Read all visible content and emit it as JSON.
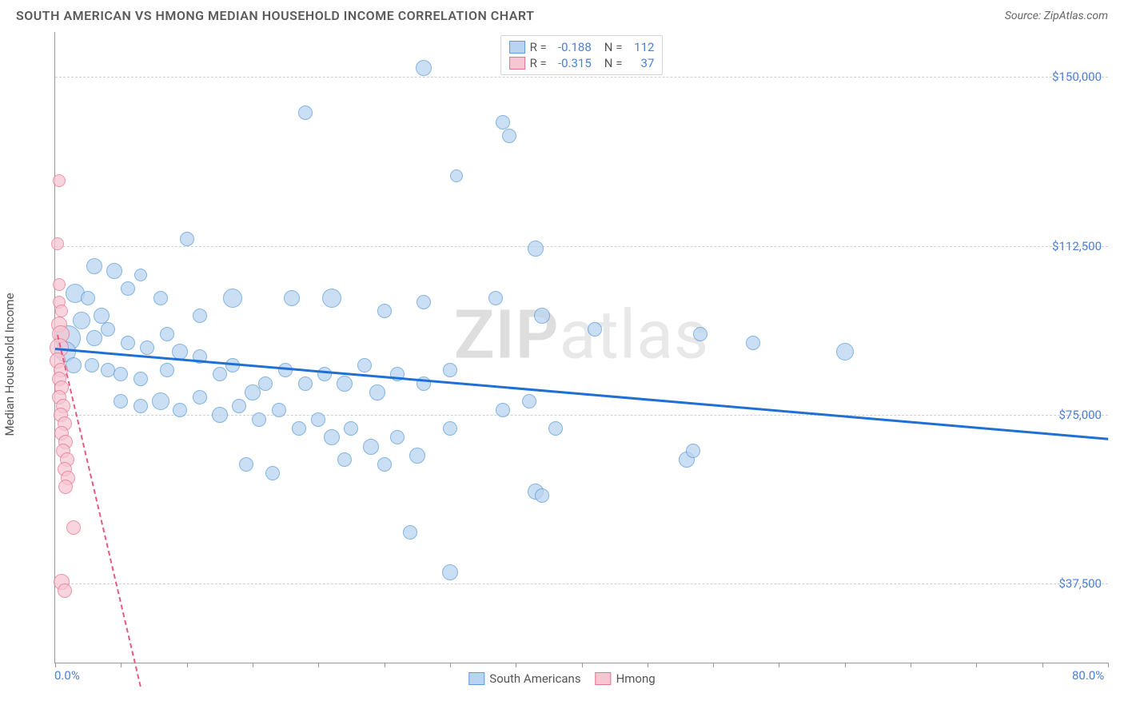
{
  "title": "SOUTH AMERICAN VS HMONG MEDIAN HOUSEHOLD INCOME CORRELATION CHART",
  "source": "Source: ZipAtlas.com",
  "ylabel": "Median Household Income",
  "watermark_a": "ZIP",
  "watermark_b": "atlas",
  "chart": {
    "type": "scatter",
    "xlim": [
      0,
      80
    ],
    "ylim": [
      20000,
      160000
    ],
    "yticks": [
      {
        "v": 37500,
        "label": "$37,500"
      },
      {
        "v": 75000,
        "label": "$75,000"
      },
      {
        "v": 112500,
        "label": "$112,500"
      },
      {
        "v": 150000,
        "label": "$150,000"
      }
    ],
    "xticks_minor": [
      0,
      5,
      10,
      15,
      20,
      25,
      30,
      35,
      40,
      45,
      50,
      55,
      60,
      65,
      70,
      75,
      80
    ],
    "xaxis_labels": [
      {
        "v": 0,
        "label": "0.0%"
      },
      {
        "v": 80,
        "label": "80.0%"
      }
    ],
    "background_color": "#ffffff",
    "grid_color": "#d0d0d0",
    "axis_color": "#999999"
  },
  "series": [
    {
      "name": "South Americans",
      "fill": "#b9d4f1",
      "stroke": "#5c9bd8",
      "trend_color": "#1f6fd4",
      "trend_style": "solid",
      "R": "-0.188",
      "N": "112",
      "trend": {
        "x1": 0,
        "y1": 90000,
        "x2": 80,
        "y2": 70000
      },
      "points": [
        {
          "x": 28.0,
          "y": 152000,
          "r": 10
        },
        {
          "x": 19.0,
          "y": 142000,
          "r": 9
        },
        {
          "x": 34.0,
          "y": 140000,
          "r": 9
        },
        {
          "x": 34.5,
          "y": 137000,
          "r": 9
        },
        {
          "x": 30.5,
          "y": 128000,
          "r": 8
        },
        {
          "x": 10.0,
          "y": 114000,
          "r": 9
        },
        {
          "x": 36.5,
          "y": 112000,
          "r": 10
        },
        {
          "x": 3.0,
          "y": 108000,
          "r": 10
        },
        {
          "x": 4.5,
          "y": 107000,
          "r": 10
        },
        {
          "x": 1.5,
          "y": 102000,
          "r": 12
        },
        {
          "x": 2.5,
          "y": 101000,
          "r": 9
        },
        {
          "x": 5.5,
          "y": 103000,
          "r": 9
        },
        {
          "x": 6.5,
          "y": 106000,
          "r": 8
        },
        {
          "x": 8.0,
          "y": 101000,
          "r": 9
        },
        {
          "x": 13.5,
          "y": 101000,
          "r": 12
        },
        {
          "x": 11.0,
          "y": 97000,
          "r": 9
        },
        {
          "x": 18.0,
          "y": 101000,
          "r": 10
        },
        {
          "x": 21.0,
          "y": 101000,
          "r": 12
        },
        {
          "x": 28.0,
          "y": 100000,
          "r": 9
        },
        {
          "x": 33.5,
          "y": 101000,
          "r": 9
        },
        {
          "x": 25.0,
          "y": 98000,
          "r": 9
        },
        {
          "x": 2.0,
          "y": 96000,
          "r": 11
        },
        {
          "x": 3.5,
          "y": 97000,
          "r": 10
        },
        {
          "x": 1.0,
          "y": 92000,
          "r": 16
        },
        {
          "x": 0.8,
          "y": 89000,
          "r": 13
        },
        {
          "x": 3.0,
          "y": 92000,
          "r": 10
        },
        {
          "x": 4.0,
          "y": 94000,
          "r": 9
        },
        {
          "x": 5.5,
          "y": 91000,
          "r": 9
        },
        {
          "x": 7.0,
          "y": 90000,
          "r": 9
        },
        {
          "x": 8.5,
          "y": 93000,
          "r": 9
        },
        {
          "x": 9.5,
          "y": 89000,
          "r": 10
        },
        {
          "x": 37.0,
          "y": 97000,
          "r": 10
        },
        {
          "x": 41.0,
          "y": 94000,
          "r": 9
        },
        {
          "x": 49.0,
          "y": 93000,
          "r": 9
        },
        {
          "x": 53.0,
          "y": 91000,
          "r": 9
        },
        {
          "x": 60.0,
          "y": 89000,
          "r": 11
        },
        {
          "x": 1.4,
          "y": 86000,
          "r": 10
        },
        {
          "x": 2.8,
          "y": 86000,
          "r": 9
        },
        {
          "x": 4.0,
          "y": 85000,
          "r": 9
        },
        {
          "x": 5.0,
          "y": 84000,
          "r": 9
        },
        {
          "x": 6.5,
          "y": 83000,
          "r": 9
        },
        {
          "x": 8.5,
          "y": 85000,
          "r": 9
        },
        {
          "x": 11.0,
          "y": 88000,
          "r": 9
        },
        {
          "x": 12.5,
          "y": 84000,
          "r": 9
        },
        {
          "x": 13.5,
          "y": 86000,
          "r": 9
        },
        {
          "x": 15.0,
          "y": 80000,
          "r": 10
        },
        {
          "x": 16.0,
          "y": 82000,
          "r": 9
        },
        {
          "x": 17.5,
          "y": 85000,
          "r": 9
        },
        {
          "x": 19.0,
          "y": 82000,
          "r": 9
        },
        {
          "x": 20.5,
          "y": 84000,
          "r": 9
        },
        {
          "x": 22.0,
          "y": 82000,
          "r": 10
        },
        {
          "x": 23.5,
          "y": 86000,
          "r": 9
        },
        {
          "x": 24.5,
          "y": 80000,
          "r": 10
        },
        {
          "x": 26.0,
          "y": 84000,
          "r": 9
        },
        {
          "x": 28.0,
          "y": 82000,
          "r": 9
        },
        {
          "x": 30.0,
          "y": 85000,
          "r": 9
        },
        {
          "x": 5.0,
          "y": 78000,
          "r": 9
        },
        {
          "x": 6.5,
          "y": 77000,
          "r": 9
        },
        {
          "x": 8.0,
          "y": 78000,
          "r": 11
        },
        {
          "x": 9.5,
          "y": 76000,
          "r": 9
        },
        {
          "x": 11.0,
          "y": 79000,
          "r": 9
        },
        {
          "x": 12.5,
          "y": 75000,
          "r": 10
        },
        {
          "x": 14.0,
          "y": 77000,
          "r": 9
        },
        {
          "x": 15.5,
          "y": 74000,
          "r": 9
        },
        {
          "x": 17.0,
          "y": 76000,
          "r": 9
        },
        {
          "x": 18.5,
          "y": 72000,
          "r": 9
        },
        {
          "x": 20.0,
          "y": 74000,
          "r": 9
        },
        {
          "x": 21.0,
          "y": 70000,
          "r": 10
        },
        {
          "x": 22.5,
          "y": 72000,
          "r": 9
        },
        {
          "x": 24.0,
          "y": 68000,
          "r": 10
        },
        {
          "x": 26.0,
          "y": 70000,
          "r": 9
        },
        {
          "x": 27.5,
          "y": 66000,
          "r": 10
        },
        {
          "x": 30.0,
          "y": 72000,
          "r": 9
        },
        {
          "x": 34.0,
          "y": 76000,
          "r": 9
        },
        {
          "x": 36.0,
          "y": 78000,
          "r": 9
        },
        {
          "x": 38.0,
          "y": 72000,
          "r": 9
        },
        {
          "x": 36.5,
          "y": 58000,
          "r": 10
        },
        {
          "x": 37.0,
          "y": 57000,
          "r": 9
        },
        {
          "x": 14.5,
          "y": 64000,
          "r": 9
        },
        {
          "x": 16.5,
          "y": 62000,
          "r": 9
        },
        {
          "x": 22.0,
          "y": 65000,
          "r": 9
        },
        {
          "x": 25.0,
          "y": 64000,
          "r": 9
        },
        {
          "x": 27.0,
          "y": 49000,
          "r": 9
        },
        {
          "x": 30.0,
          "y": 40000,
          "r": 10
        },
        {
          "x": 48.0,
          "y": 65000,
          "r": 10
        },
        {
          "x": 48.5,
          "y": 67000,
          "r": 9
        }
      ]
    },
    {
      "name": "Hmong",
      "fill": "#f6c7d3",
      "stroke": "#e5748f",
      "trend_color": "#e85a7d",
      "trend_style": "dashed",
      "R": "-0.315",
      "N": "37",
      "trend": {
        "x1": 0.2,
        "y1": 93000,
        "x2": 6.5,
        "y2": 15000
      },
      "points": [
        {
          "x": 0.3,
          "y": 127000,
          "r": 8
        },
        {
          "x": 0.2,
          "y": 113000,
          "r": 8
        },
        {
          "x": 0.3,
          "y": 104000,
          "r": 8
        },
        {
          "x": 0.3,
          "y": 100000,
          "r": 8
        },
        {
          "x": 0.5,
          "y": 98000,
          "r": 8
        },
        {
          "x": 0.3,
          "y": 95000,
          "r": 10
        },
        {
          "x": 0.4,
          "y": 93000,
          "r": 11
        },
        {
          "x": 0.3,
          "y": 90000,
          "r": 12
        },
        {
          "x": 0.2,
          "y": 87000,
          "r": 10
        },
        {
          "x": 0.4,
          "y": 85000,
          "r": 9
        },
        {
          "x": 0.3,
          "y": 83000,
          "r": 9
        },
        {
          "x": 0.5,
          "y": 81000,
          "r": 9
        },
        {
          "x": 0.3,
          "y": 79000,
          "r": 9
        },
        {
          "x": 0.6,
          "y": 77000,
          "r": 9
        },
        {
          "x": 0.4,
          "y": 75000,
          "r": 9
        },
        {
          "x": 0.7,
          "y": 73000,
          "r": 9
        },
        {
          "x": 0.5,
          "y": 71000,
          "r": 9
        },
        {
          "x": 0.8,
          "y": 69000,
          "r": 9
        },
        {
          "x": 0.6,
          "y": 67000,
          "r": 9
        },
        {
          "x": 0.9,
          "y": 65000,
          "r": 9
        },
        {
          "x": 0.7,
          "y": 63000,
          "r": 9
        },
        {
          "x": 1.0,
          "y": 61000,
          "r": 9
        },
        {
          "x": 0.8,
          "y": 59000,
          "r": 9
        },
        {
          "x": 1.4,
          "y": 50000,
          "r": 9
        },
        {
          "x": 0.5,
          "y": 38000,
          "r": 10
        },
        {
          "x": 0.7,
          "y": 36000,
          "r": 9
        }
      ]
    }
  ]
}
